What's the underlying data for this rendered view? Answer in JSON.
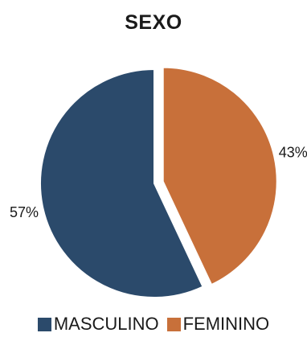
{
  "chart_data": {
    "type": "pie",
    "title": "SEXO",
    "categories": [
      "MASCULINO",
      "FEMININO"
    ],
    "values": [
      57,
      43
    ],
    "labels": [
      "57%",
      "43%"
    ],
    "colors": [
      "#2b4a6b",
      "#c8703a"
    ],
    "exploded": [
      false,
      true
    ],
    "legend_position": "bottom"
  }
}
